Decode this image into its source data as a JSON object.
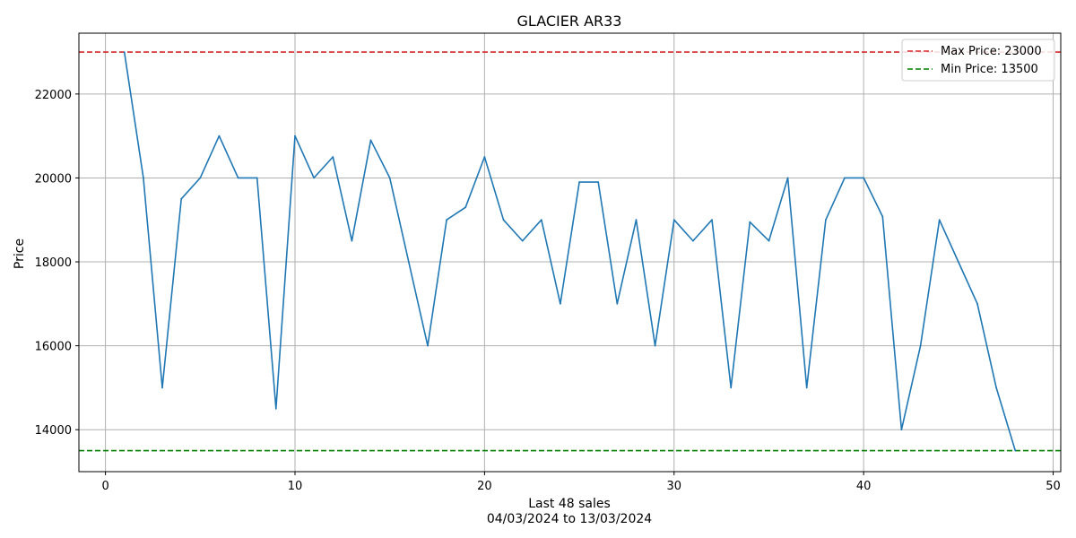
{
  "chart_data": {
    "type": "line",
    "title": "GLACIER AR33",
    "xlabel": "Last 48 sales",
    "xlabel_sub": "04/03/2024 to 13/03/2024",
    "ylabel": "Price",
    "xlim": [
      -1.4,
      50.4
    ],
    "ylim": [
      13000,
      23450
    ],
    "xticks": [
      0,
      10,
      20,
      30,
      40,
      50
    ],
    "yticks": [
      14000,
      16000,
      18000,
      20000,
      22000
    ],
    "grid": true,
    "series": [
      {
        "name": "Price",
        "color": "#1f77b4",
        "x": [
          1,
          2,
          3,
          4,
          5,
          6,
          7,
          8,
          9,
          10,
          11,
          12,
          13,
          14,
          15,
          16,
          17,
          18,
          19,
          20,
          21,
          22,
          23,
          24,
          25,
          26,
          27,
          28,
          29,
          30,
          31,
          32,
          33,
          34,
          35,
          36,
          37,
          38,
          39,
          40,
          41,
          42,
          43,
          44,
          45,
          46,
          47,
          48
        ],
        "values": [
          23000,
          20000,
          15000,
          19500,
          20000,
          21000,
          20000,
          20000,
          14500,
          21000,
          20000,
          20500,
          18500,
          20900,
          20000,
          18000,
          16000,
          19000,
          19300,
          20500,
          19000,
          18500,
          19000,
          17000,
          19900,
          19900,
          17000,
          19000,
          16000,
          19000,
          18500,
          19000,
          15000,
          18950,
          18500,
          20000,
          15000,
          19000,
          20000,
          20000,
          19080,
          14000,
          16000,
          19000,
          18000,
          17000,
          15000,
          13500
        ]
      }
    ],
    "reference_lines": [
      {
        "label": "Max Price: 23000",
        "value": 23000,
        "color": "#d62728",
        "style": "dashed"
      },
      {
        "label": "Min Price: 13500",
        "value": 13500,
        "color": "#008000",
        "style": "dashed"
      }
    ],
    "legend_position": "top-right"
  }
}
